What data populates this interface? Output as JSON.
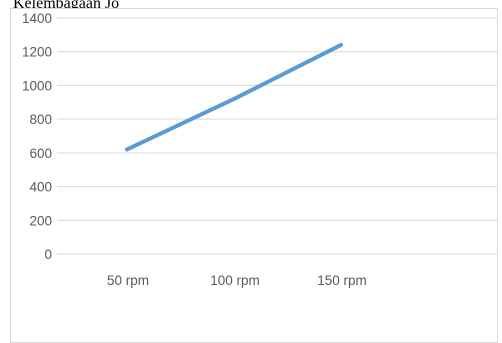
{
  "caption": "Kelembagaan Jo",
  "chart_data": {
    "type": "line",
    "title": "",
    "xlabel": "",
    "ylabel": "",
    "categories": [
      "50 rpm",
      "100 rpm",
      "150 rpm"
    ],
    "series": [
      {
        "values": [
          620,
          920,
          1240
        ]
      }
    ],
    "ylim": [
      0,
      1400
    ],
    "yticks": [
      0,
      200,
      400,
      600,
      800,
      1000,
      1200,
      1400
    ],
    "grid": true,
    "legend": "none",
    "line_color": "#5b9bd5",
    "grid_color": "#d9d9d9",
    "tick_label_color": "#595959"
  }
}
